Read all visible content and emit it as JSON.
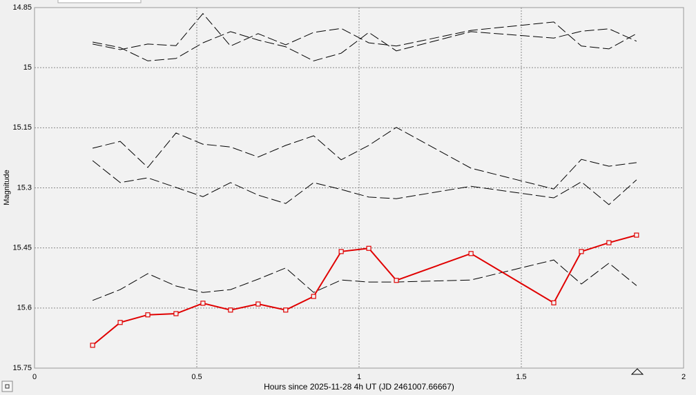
{
  "chart_data": {
    "type": "line",
    "xlabel": "Hours since 2025-11-28 4h UT (JD 2461007.66667)",
    "ylabel": "Magnitude",
    "x": [
      0.179,
      0.264,
      0.349,
      0.436,
      0.519,
      0.604,
      0.689,
      0.774,
      0.86,
      0.945,
      1.03,
      1.115,
      1.345,
      1.6,
      1.685,
      1.77,
      1.855
    ],
    "series": [
      {
        "color": "#000000",
        "line_style": "dashed",
        "values": [
          14.936,
          14.95,
          14.983,
          14.977,
          14.938,
          14.91,
          14.931,
          14.948,
          14.983,
          14.964,
          14.912,
          14.958,
          14.91,
          14.926,
          14.909,
          14.903,
          14.934
        ]
      },
      {
        "color": "#000000",
        "line_style": "dashed",
        "values": [
          14.941,
          14.955,
          14.941,
          14.945,
          14.865,
          14.946,
          14.915,
          14.943,
          14.912,
          14.902,
          14.938,
          14.946,
          14.907,
          14.886,
          14.946,
          14.953,
          14.915
        ]
      },
      {
        "color": "#000000",
        "line_style": "dashed",
        "values": [
          15.201,
          15.184,
          15.249,
          15.163,
          15.191,
          15.198,
          15.223,
          15.194,
          15.17,
          15.23,
          15.194,
          15.149,
          15.251,
          15.303,
          15.229,
          15.246,
          15.237
        ]
      },
      {
        "color": "#000000",
        "line_style": "dashed",
        "values": [
          15.232,
          15.287,
          15.275,
          15.299,
          15.322,
          15.287,
          15.318,
          15.339,
          15.287,
          15.304,
          15.323,
          15.327,
          15.296,
          15.325,
          15.285,
          15.342,
          15.28
        ]
      },
      {
        "color": "#000000",
        "line_style": "dashed",
        "values": [
          15.581,
          15.554,
          15.514,
          15.545,
          15.561,
          15.554,
          15.528,
          15.5,
          15.561,
          15.53,
          15.535,
          15.535,
          15.53,
          15.48,
          15.54,
          15.488,
          15.544
        ]
      },
      {
        "color": "#e00000",
        "line_style": "solid",
        "marker": "square",
        "values": [
          15.693,
          15.636,
          15.617,
          15.614,
          15.588,
          15.605,
          15.59,
          15.605,
          15.571,
          15.459,
          15.451,
          15.531,
          15.464,
          15.587,
          15.459,
          15.437,
          15.418
        ]
      }
    ],
    "xlim": [
      0,
      2
    ],
    "xticks": [
      0,
      0.5,
      1,
      1.5,
      2
    ],
    "ylim": [
      15.75,
      14.85
    ],
    "yticks": [
      14.85,
      15,
      15.15,
      15.3,
      15.45,
      15.6,
      15.75
    ],
    "grid": true
  }
}
